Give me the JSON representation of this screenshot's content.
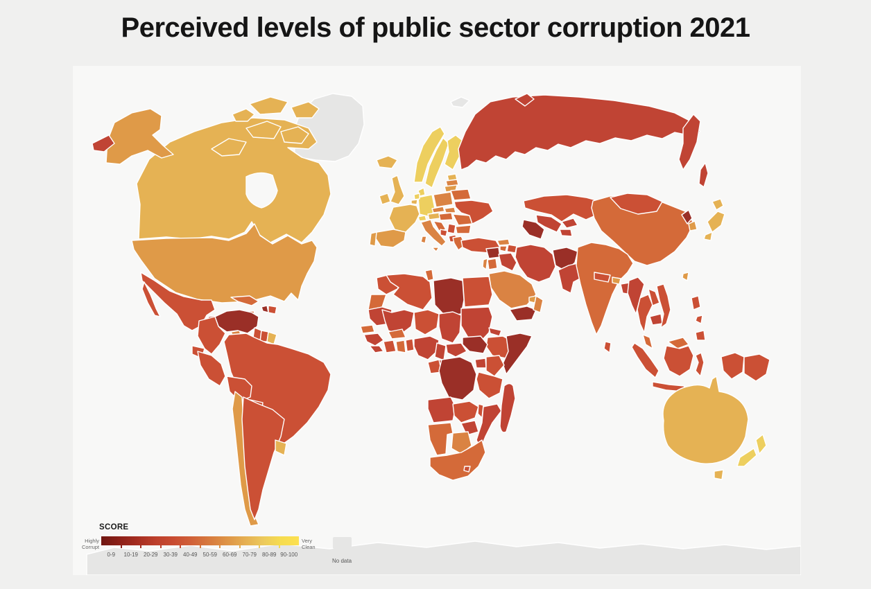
{
  "title": "Perceived levels of public sector corruption 2021",
  "colors": {
    "page_bg": "#f0f0ef",
    "map_bg": "#f8f8f7",
    "country_border": "#ffffff"
  },
  "scale": {
    "b0": "#701712",
    "b10": "#9a2f27",
    "b20": "#c04434",
    "b30": "#cb5035",
    "b40": "#d46a39",
    "b50": "#da8343",
    "b60": "#df9a48",
    "b70": "#e5b254",
    "b80": "#edcf5f",
    "b90": "#f9df4f",
    "no_data": "#e6e6e5"
  },
  "legend": {
    "score_label": "SCORE",
    "left_label_line1": "Highly",
    "left_label_line2": "Corrupt",
    "right_label_line1": "Very",
    "right_label_line2": "Clean",
    "ticks": [
      "0-9",
      "10-19",
      "20-29",
      "30-39",
      "40-49",
      "50-59",
      "60-69",
      "70-79",
      "80-89",
      "90-100"
    ],
    "no_data_label": "No data",
    "gradient_colors": [
      "#701712",
      "#8c2018",
      "#a52d20",
      "#bc3f2b",
      "#c84b31",
      "#d06038",
      "#d77a3e",
      "#de9446",
      "#e5af52",
      "#ecc95c",
      "#f6dc4f",
      "#fce051"
    ]
  }
}
